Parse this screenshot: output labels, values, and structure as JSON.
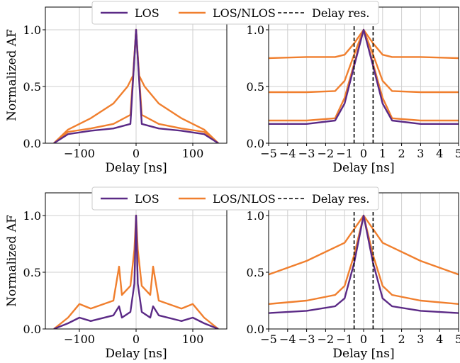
{
  "colors": {
    "los": "#5b2a86",
    "los_nlos": "#f07f2e",
    "delay_res": "#000000",
    "grid": "#cfcfcf"
  },
  "chart_data": [
    {
      "type": "line",
      "panel": "top-left",
      "xlabel": "Delay [ns]",
      "ylabel": "Normalized AF",
      "xlim": [
        -160,
        160
      ],
      "ylim": [
        0,
        1.2
      ],
      "xticks": [
        -100,
        0,
        100
      ],
      "yticks": [
        0.0,
        0.5,
        1.0
      ],
      "xtick_labels": [
        "−100",
        "0",
        "100"
      ],
      "ytick_labels": [
        "0.0",
        "0.5",
        "1.0"
      ],
      "grid": true,
      "legend": {
        "placement": "top-center",
        "entries": [
          "LOS",
          "LOS/NLOS",
          "Delay res."
        ]
      },
      "series": [
        {
          "name": "LOS/NLOS",
          "style": "solid",
          "x": [
            -145,
            -120,
            -80,
            -40,
            -15,
            -5,
            0,
            5,
            15,
            40,
            80,
            120,
            145
          ],
          "values": [
            0.0,
            0.12,
            0.22,
            0.35,
            0.5,
            0.6,
            1.0,
            0.6,
            0.5,
            0.35,
            0.22,
            0.12,
            0.0
          ]
        },
        {
          "name": "LOS/NLOS",
          "style": "solid",
          "x": [
            -145,
            -120,
            -80,
            -40,
            -10,
            0,
            10,
            40,
            80,
            120,
            145
          ],
          "values": [
            0.0,
            0.1,
            0.13,
            0.17,
            0.25,
            1.0,
            0.25,
            0.17,
            0.13,
            0.1,
            0.0
          ]
        },
        {
          "name": "LOS",
          "style": "solid",
          "x": [
            -145,
            -120,
            -80,
            -40,
            -10,
            0,
            10,
            40,
            80,
            120,
            145
          ],
          "values": [
            0.0,
            0.08,
            0.11,
            0.13,
            0.17,
            1.0,
            0.17,
            0.13,
            0.11,
            0.08,
            0.0
          ]
        }
      ]
    },
    {
      "type": "line",
      "panel": "top-right",
      "xlabel": "Delay [ns]",
      "ylabel": "",
      "xlim": [
        -5,
        5
      ],
      "ylim": [
        0,
        1.2
      ],
      "xticks": [
        -5,
        -4,
        -3,
        -2,
        -1,
        0,
        1,
        2,
        3,
        4,
        5
      ],
      "yticks": [
        0.0,
        0.5,
        1.0
      ],
      "xtick_labels": [
        "−5",
        "−4",
        "−3",
        "−2",
        "−1",
        "0",
        "1",
        "2",
        "3",
        "4",
        "5"
      ],
      "ytick_labels": [
        "0.0",
        "0.5",
        "1.0"
      ],
      "grid": true,
      "series": [
        {
          "name": "LOS/NLOS",
          "style": "solid",
          "x": [
            -5,
            -3,
            -1.5,
            -1,
            -0.5,
            0,
            0.5,
            1,
            1.5,
            3,
            5
          ],
          "values": [
            0.75,
            0.76,
            0.76,
            0.78,
            0.88,
            1.0,
            0.88,
            0.78,
            0.76,
            0.76,
            0.75
          ]
        },
        {
          "name": "LOS/NLOS",
          "style": "solid",
          "x": [
            -5,
            -3,
            -1.5,
            -1,
            -0.5,
            0,
            0.5,
            1,
            1.5,
            3,
            5
          ],
          "values": [
            0.45,
            0.45,
            0.46,
            0.55,
            0.78,
            1.0,
            0.78,
            0.55,
            0.46,
            0.45,
            0.45
          ]
        },
        {
          "name": "LOS/NLOS",
          "style": "solid",
          "x": [
            -5,
            -3,
            -1.5,
            -1,
            -0.5,
            0,
            0.5,
            1,
            1.5,
            3,
            5
          ],
          "values": [
            0.2,
            0.2,
            0.22,
            0.4,
            0.7,
            1.0,
            0.7,
            0.4,
            0.22,
            0.2,
            0.2
          ]
        },
        {
          "name": "LOS",
          "style": "solid",
          "x": [
            -5,
            -3,
            -1.5,
            -1,
            -0.5,
            0,
            0.5,
            1,
            1.5,
            3,
            5
          ],
          "values": [
            0.17,
            0.17,
            0.2,
            0.35,
            0.68,
            1.0,
            0.68,
            0.35,
            0.2,
            0.17,
            0.17
          ]
        },
        {
          "name": "Delay res.",
          "style": "dashed",
          "x": [
            -0.5,
            -0.5
          ],
          "values": [
            0,
            1.2
          ]
        },
        {
          "name": "Delay res.",
          "style": "dashed",
          "x": [
            0.5,
            0.5
          ],
          "values": [
            0,
            1.2
          ]
        }
      ]
    },
    {
      "type": "line",
      "panel": "bottom-left",
      "xlabel": "Delay [ns]",
      "ylabel": "Normalized AF",
      "xlim": [
        -160,
        160
      ],
      "ylim": [
        0,
        1.2
      ],
      "xticks": [
        -100,
        0,
        100
      ],
      "yticks": [
        0.0,
        0.5,
        1.0
      ],
      "xtick_labels": [
        "−100",
        "0",
        "100"
      ],
      "ytick_labels": [
        "0.0",
        "0.5",
        "1.0"
      ],
      "grid": true,
      "legend": {
        "placement": "top-center",
        "entries": [
          "LOS",
          "LOS/NLOS",
          "Delay res."
        ]
      },
      "series": [
        {
          "name": "LOS/NLOS",
          "style": "solid",
          "x": [
            -145,
            -120,
            -100,
            -80,
            -40,
            -30,
            -25,
            -10,
            -3,
            0,
            3,
            10,
            25,
            30,
            40,
            80,
            100,
            120,
            145
          ],
          "values": [
            0.0,
            0.1,
            0.22,
            0.18,
            0.25,
            0.55,
            0.3,
            0.38,
            0.7,
            1.0,
            0.7,
            0.38,
            0.3,
            0.55,
            0.25,
            0.18,
            0.22,
            0.1,
            0.0
          ]
        },
        {
          "name": "LOS",
          "style": "solid",
          "x": [
            -145,
            -120,
            -100,
            -80,
            -40,
            -30,
            -25,
            -10,
            -3,
            0,
            3,
            10,
            25,
            30,
            40,
            80,
            100,
            120,
            145
          ],
          "values": [
            0.0,
            0.05,
            0.1,
            0.07,
            0.12,
            0.2,
            0.1,
            0.15,
            0.4,
            1.0,
            0.4,
            0.15,
            0.1,
            0.2,
            0.12,
            0.07,
            0.1,
            0.05,
            0.0
          ]
        }
      ]
    },
    {
      "type": "line",
      "panel": "bottom-right",
      "xlabel": "Delay [ns]",
      "ylabel": "",
      "xlim": [
        -5,
        5
      ],
      "ylim": [
        0,
        1.2
      ],
      "xticks": [
        -5,
        -4,
        -3,
        -2,
        -1,
        0,
        1,
        2,
        3,
        4,
        5
      ],
      "yticks": [
        0.0,
        0.5,
        1.0
      ],
      "xtick_labels": [
        "−5",
        "−4",
        "−3",
        "−2",
        "−1",
        "0",
        "1",
        "2",
        "3",
        "4",
        "5"
      ],
      "ytick_labels": [
        "0.0",
        "0.5",
        "1.0"
      ],
      "grid": true,
      "series": [
        {
          "name": "LOS/NLOS",
          "style": "solid",
          "x": [
            -5,
            -3,
            -1.5,
            -1,
            -0.5,
            0,
            0.5,
            1,
            1.5,
            3,
            5
          ],
          "values": [
            0.48,
            0.6,
            0.72,
            0.76,
            0.88,
            1.0,
            0.88,
            0.76,
            0.72,
            0.6,
            0.48
          ]
        },
        {
          "name": "LOS/NLOS",
          "style": "solid",
          "x": [
            -5,
            -3,
            -1.5,
            -1,
            -0.5,
            0,
            0.5,
            1,
            1.5,
            3,
            5
          ],
          "values": [
            0.22,
            0.25,
            0.3,
            0.38,
            0.65,
            1.0,
            0.65,
            0.38,
            0.3,
            0.25,
            0.22
          ]
        },
        {
          "name": "LOS",
          "style": "solid",
          "x": [
            -5,
            -3,
            -1.5,
            -1,
            -0.5,
            0,
            0.5,
            1,
            1.5,
            3,
            5
          ],
          "values": [
            0.14,
            0.16,
            0.2,
            0.27,
            0.58,
            1.0,
            0.58,
            0.27,
            0.2,
            0.16,
            0.14
          ]
        },
        {
          "name": "Delay res.",
          "style": "dashed",
          "x": [
            -0.5,
            -0.5
          ],
          "values": [
            0,
            1.2
          ]
        },
        {
          "name": "Delay res.",
          "style": "dashed",
          "x": [
            0.5,
            0.5
          ],
          "values": [
            0,
            1.2
          ]
        }
      ]
    }
  ]
}
